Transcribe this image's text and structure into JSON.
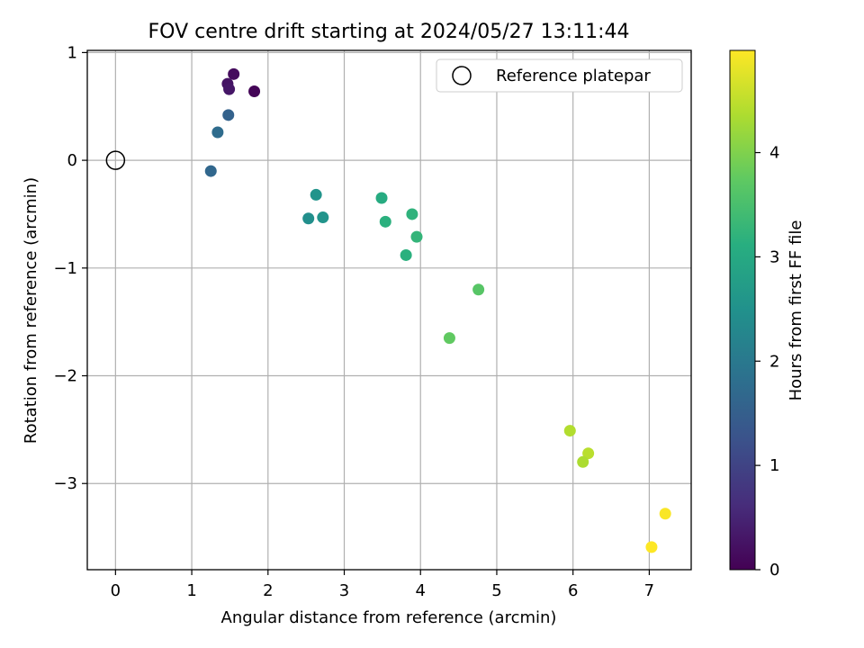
{
  "chart_data": {
    "type": "scatter",
    "title": "FOV centre drift starting at 2024/05/27 13:11:44",
    "xlabel": "Angular distance from reference (arcmin)",
    "ylabel": "Rotation from reference (arcmin)",
    "xlim": [
      -0.37,
      7.55
    ],
    "ylim": [
      -3.8,
      1.02
    ],
    "xticks": [
      0,
      1,
      2,
      3,
      4,
      5,
      6,
      7
    ],
    "yticks": [
      1,
      0,
      -1,
      -2,
      -3
    ],
    "grid": true,
    "legend": {
      "placement": "top-right",
      "entries": [
        "Reference platepar"
      ]
    },
    "reference_point": {
      "x": 0,
      "y": 0,
      "marker": "open-circle"
    },
    "points": [
      {
        "x": 1.55,
        "y": 0.8,
        "hours": 0.15
      },
      {
        "x": 1.47,
        "y": 0.71,
        "hours": 0.25
      },
      {
        "x": 1.49,
        "y": 0.66,
        "hours": 0.3
      },
      {
        "x": 1.82,
        "y": 0.64,
        "hours": 0.05
      },
      {
        "x": 1.48,
        "y": 0.42,
        "hours": 1.55
      },
      {
        "x": 1.34,
        "y": 0.26,
        "hours": 1.75
      },
      {
        "x": 1.25,
        "y": -0.1,
        "hours": 1.65
      },
      {
        "x": 2.63,
        "y": -0.32,
        "hours": 2.55
      },
      {
        "x": 2.53,
        "y": -0.54,
        "hours": 2.45
      },
      {
        "x": 2.72,
        "y": -0.53,
        "hours": 2.55
      },
      {
        "x": 3.49,
        "y": -0.35,
        "hours": 3.05
      },
      {
        "x": 3.54,
        "y": -0.57,
        "hours": 3.15
      },
      {
        "x": 3.89,
        "y": -0.5,
        "hours": 3.2
      },
      {
        "x": 3.95,
        "y": -0.71,
        "hours": 3.25
      },
      {
        "x": 3.81,
        "y": -0.88,
        "hours": 3.15
      },
      {
        "x": 4.76,
        "y": -1.2,
        "hours": 3.65
      },
      {
        "x": 4.38,
        "y": -1.65,
        "hours": 3.75
      },
      {
        "x": 5.96,
        "y": -2.51,
        "hours": 4.4
      },
      {
        "x": 6.2,
        "y": -2.72,
        "hours": 4.45
      },
      {
        "x": 6.13,
        "y": -2.8,
        "hours": 4.35
      },
      {
        "x": 7.21,
        "y": -3.28,
        "hours": 4.95
      },
      {
        "x": 7.03,
        "y": -3.59,
        "hours": 5.0
      }
    ],
    "colorbar": {
      "label": "Hours from first FF file",
      "colormap": "viridis",
      "range": [
        0,
        4.98
      ],
      "ticks": [
        0,
        1,
        2,
        3,
        4
      ]
    }
  }
}
